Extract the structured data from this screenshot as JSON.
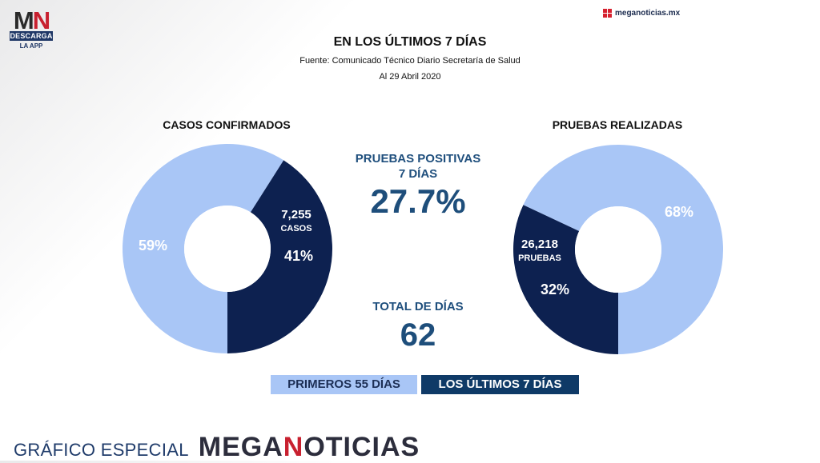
{
  "header": {
    "logo_mn": "MN",
    "logo_descarga": "DESCARGA",
    "logo_app": "LA APP",
    "brand": "meganoticias.mx",
    "title": "EN LOS ÚLTIMOS 7 DÍAS",
    "source": "Fuente: Comunicado Técnico Diario Secretaría de Salud",
    "date": "Al 29 Abril 2020"
  },
  "center": {
    "pruebas_positivas_label_1": "PRUEBAS POSITIVAS",
    "pruebas_positivas_label_2": "7 DÍAS",
    "pruebas_positivas_value": "27.7%",
    "total_dias_label": "TOTAL DE DÍAS",
    "total_dias_value": "62"
  },
  "legend": {
    "first": "PRIMEROS 55 DÍAS",
    "last": "LOS ÚLTIMOS 7 DÍAS"
  },
  "footer": {
    "special": "GRÁFICO ESPECIAL",
    "brand": "MEGANOTICIAS"
  },
  "colors": {
    "light_blue": "#a9c6f6",
    "dark_navy": "#0d2150",
    "text_blue": "#1e4e7b"
  },
  "chart_data": [
    {
      "type": "pie",
      "title": "CASOS CONFIRMADOS",
      "slices": [
        {
          "name": "PRIMEROS 55 DÍAS",
          "value": 59,
          "label": "59%"
        },
        {
          "name": "LOS ÚLTIMOS 7 DÍAS",
          "value": 41,
          "label": "41%",
          "count": "7,255",
          "unit": "CASOS"
        }
      ]
    },
    {
      "type": "pie",
      "title": "PRUEBAS REALIZADAS",
      "slices": [
        {
          "name": "PRIMEROS 55 DÍAS",
          "value": 68,
          "label": "68%"
        },
        {
          "name": "LOS ÚLTIMOS 7 DÍAS",
          "value": 32,
          "label": "32%",
          "count": "26,218",
          "unit": "PRUEBAS"
        }
      ]
    }
  ]
}
